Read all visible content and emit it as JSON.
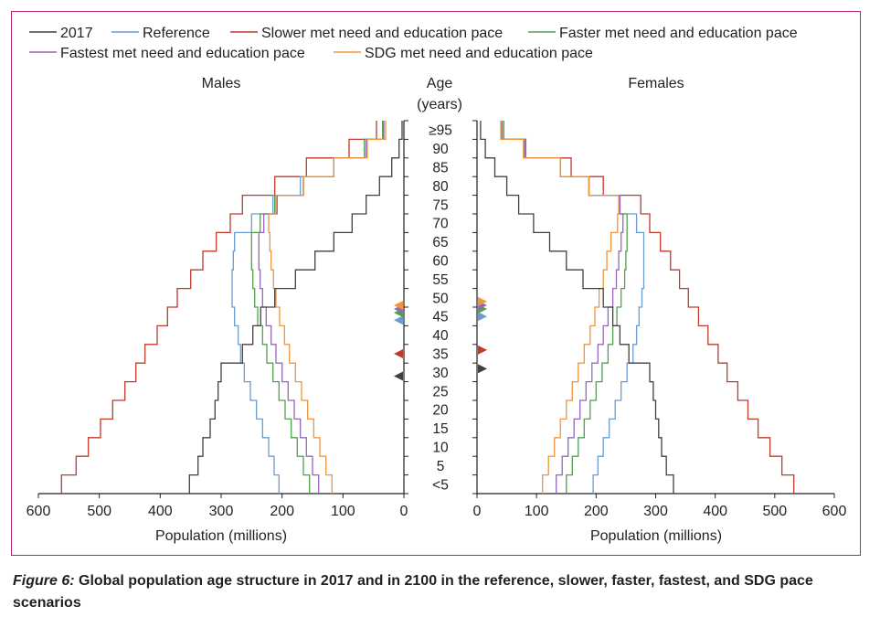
{
  "figure": {
    "label": "Figure 6:",
    "caption": " Global population age structure in 2017 and in 2100 in the reference, slower, faster, fastest, and SDG pace scenarios"
  },
  "colors": {
    "2017": "#404040",
    "reference": "#6a9bd1",
    "slower": "#c0392b",
    "faster": "#4ea24e",
    "fastest": "#9467bd",
    "sdg": "#f0953c",
    "frame": "#b0276a"
  },
  "chart_data": {
    "type": "line",
    "subtype": "population-pyramid",
    "panels": [
      "Males",
      "Females"
    ],
    "center_label": [
      "Age",
      "(years)"
    ],
    "age_groups": [
      "<5",
      "5",
      "10",
      "15",
      "20",
      "25",
      "30",
      "35",
      "40",
      "45",
      "50",
      "55",
      "60",
      "65",
      "70",
      "75",
      "80",
      "85",
      "90",
      "≥95"
    ],
    "xlabel": "Population (millions)",
    "xlim": [
      0,
      600
    ],
    "xticks": [
      0,
      100,
      200,
      300,
      400,
      500,
      600
    ],
    "legend_position": "top-left",
    "series": [
      {
        "key": "2017",
        "name": "2017",
        "color": "#404040",
        "males": [
          352,
          338,
          330,
          318,
          310,
          305,
          300,
          265,
          248,
          235,
          212,
          178,
          146,
          115,
          85,
          62,
          40,
          20,
          8,
          3
        ],
        "females": [
          330,
          318,
          310,
          305,
          300,
          296,
          290,
          255,
          240,
          228,
          212,
          178,
          150,
          122,
          95,
          70,
          50,
          30,
          14,
          6
        ],
        "median_age": {
          "males": 31.5,
          "females": 33.5
        }
      },
      {
        "key": "reference",
        "name": "Reference",
        "color": "#6a9bd1",
        "males": [
          205,
          213,
          222,
          232,
          242,
          252,
          262,
          268,
          272,
          278,
          282,
          282,
          280,
          278,
          250,
          215,
          170,
          115,
          65,
          35
        ],
        "females": [
          195,
          203,
          212,
          222,
          232,
          242,
          252,
          262,
          268,
          272,
          277,
          280,
          280,
          280,
          268,
          240,
          188,
          140,
          82,
          45
        ],
        "median_age": {
          "males": 46.5,
          "females": 47.5
        }
      },
      {
        "key": "slower",
        "name": "Slower met need and education pace",
        "color": "#c0392b",
        "males": [
          562,
          538,
          518,
          498,
          478,
          458,
          440,
          425,
          405,
          388,
          372,
          350,
          330,
          308,
          285,
          265,
          212,
          160,
          90,
          45
        ],
        "females": [
          532,
          512,
          492,
          472,
          455,
          438,
          420,
          405,
          388,
          372,
          355,
          340,
          325,
          308,
          290,
          275,
          212,
          158,
          80,
          40
        ],
        "median_age": {
          "males": 37.5,
          "females": 38.5
        }
      },
      {
        "key": "faster",
        "name": "Faster met need and education pace",
        "color": "#4ea24e",
        "males": [
          155,
          165,
          175,
          185,
          195,
          205,
          215,
          225,
          232,
          240,
          245,
          248,
          250,
          250,
          236,
          212,
          165,
          115,
          65,
          35
        ],
        "females": [
          150,
          160,
          170,
          180,
          190,
          200,
          210,
          220,
          228,
          235,
          242,
          248,
          250,
          252,
          252,
          240,
          188,
          140,
          82,
          45
        ],
        "median_age": {
          "males": 48.5,
          "females": 49.5
        }
      },
      {
        "key": "fastest",
        "name": "Fastest met need and education pace",
        "color": "#9467bd",
        "males": [
          140,
          150,
          160,
          170,
          180,
          190,
          200,
          210,
          218,
          226,
          232,
          236,
          238,
          238,
          230,
          208,
          165,
          115,
          62,
          33
        ],
        "females": [
          133,
          143,
          153,
          163,
          173,
          183,
          193,
          203,
          212,
          220,
          228,
          234,
          238,
          242,
          245,
          240,
          188,
          140,
          80,
          42
        ],
        "median_age": {
          "males": 49.5,
          "females": 50.5
        }
      },
      {
        "key": "sdg",
        "name": "SDG met need and education pace",
        "color": "#f0953c",
        "males": [
          118,
          128,
          138,
          148,
          158,
          168,
          178,
          188,
          196,
          204,
          210,
          214,
          218,
          220,
          222,
          210,
          165,
          115,
          60,
          30
        ],
        "females": [
          110,
          120,
          130,
          140,
          150,
          160,
          170,
          180,
          190,
          198,
          205,
          212,
          218,
          225,
          236,
          238,
          188,
          140,
          78,
          40
        ],
        "median_age": {
          "males": 50.5,
          "females": 51.5
        }
      }
    ]
  }
}
